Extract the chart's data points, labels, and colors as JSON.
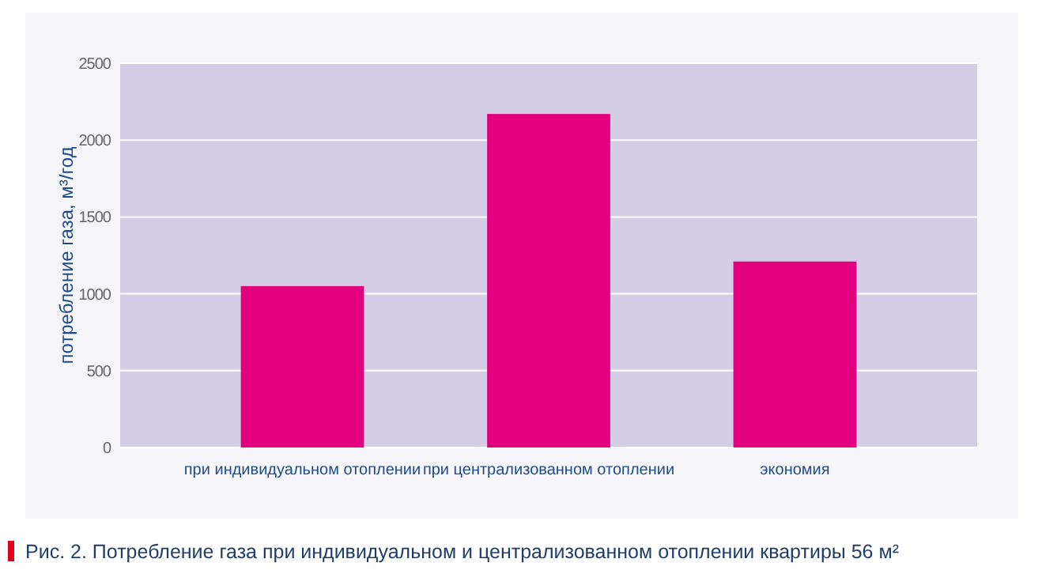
{
  "chart_data": {
    "type": "bar",
    "title": "Рис. 2. Потребление газа при индивидуальном и централизованном отоплении квартиры 56 м²",
    "ylabel": "потребление газа, м³/год",
    "categories": [
      "при индивидуальном отоплении",
      "при централизованном отоплении",
      "экономия"
    ],
    "values": [
      1050,
      2170,
      1210
    ],
    "color": "#e2007e",
    "ylim": [
      0,
      2500
    ],
    "yticks": [
      0,
      500,
      1000,
      1500,
      2000,
      2500
    ],
    "grid": "y"
  }
}
